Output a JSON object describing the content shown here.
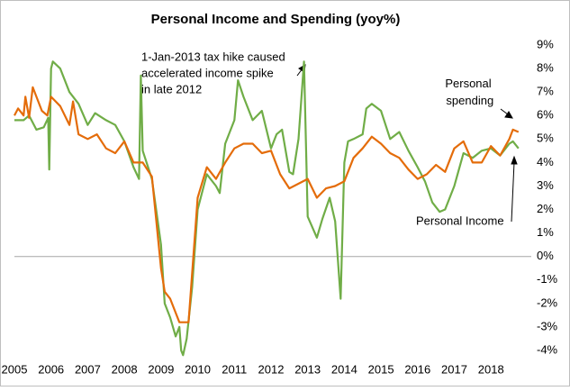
{
  "chart_data": {
    "type": "line",
    "title": "Personal Income and Spending (yoy%)",
    "annotation": [
      "1-Jan-2013 tax hike caused",
      "accelerated income spike",
      "in late 2012"
    ],
    "xlim": [
      2005,
      2019.1
    ],
    "xticks": [
      2005,
      2006,
      2007,
      2008,
      2009,
      2010,
      2011,
      2012,
      2013,
      2014,
      2015,
      2016,
      2017,
      2018
    ],
    "ylim": [
      -4,
      9
    ],
    "yticks": [
      {
        "value": -4,
        "label": "-4%"
      },
      {
        "value": -3,
        "label": "-3%"
      },
      {
        "value": -2,
        "label": "-2%"
      },
      {
        "value": -1,
        "label": "-1%"
      },
      {
        "value": 0,
        "label": "0%"
      },
      {
        "value": 1,
        "label": "1%"
      },
      {
        "value": 2,
        "label": "2%"
      },
      {
        "value": 3,
        "label": "3%"
      },
      {
        "value": 4,
        "label": "4%"
      },
      {
        "value": 5,
        "label": "5%"
      },
      {
        "value": 6,
        "label": "6%"
      },
      {
        "value": 7,
        "label": "7%"
      },
      {
        "value": 8,
        "label": "8%"
      },
      {
        "value": 9,
        "label": "9%"
      }
    ],
    "series": [
      {
        "name": "Personal Income",
        "color": "#70ad47",
        "x": [
          2005.0,
          2005.25,
          2005.4,
          2005.6,
          2005.8,
          2005.92,
          2005.95,
          2006.0,
          2006.05,
          2006.25,
          2006.5,
          2006.75,
          2007.0,
          2007.2,
          2007.5,
          2007.75,
          2008.0,
          2008.25,
          2008.4,
          2008.45,
          2008.5,
          2008.75,
          2009.0,
          2009.1,
          2009.25,
          2009.4,
          2009.5,
          2009.55,
          2009.6,
          2009.7,
          2009.85,
          2010.0,
          2010.25,
          2010.5,
          2010.6,
          2010.75,
          2011.0,
          2011.1,
          2011.25,
          2011.5,
          2011.75,
          2012.0,
          2012.15,
          2012.3,
          2012.5,
          2012.6,
          2012.75,
          2012.9,
          2013.0,
          2013.25,
          2013.4,
          2013.6,
          2013.75,
          2013.9,
          2014.0,
          2014.1,
          2014.25,
          2014.5,
          2014.6,
          2014.75,
          2015.0,
          2015.25,
          2015.5,
          2015.75,
          2016.0,
          2016.2,
          2016.4,
          2016.6,
          2016.75,
          2017.0,
          2017.25,
          2017.5,
          2017.75,
          2018.0,
          2018.25,
          2018.5,
          2018.6,
          2018.75
        ],
        "values": [
          5.8,
          5.8,
          6.0,
          5.4,
          5.5,
          5.9,
          3.7,
          8.0,
          8.3,
          8.0,
          7.0,
          6.5,
          5.6,
          6.1,
          5.8,
          5.6,
          4.9,
          3.8,
          3.3,
          7.7,
          4.5,
          3.3,
          0.5,
          -2.0,
          -2.6,
          -3.4,
          -3.0,
          -4.0,
          -4.2,
          -3.5,
          -1.3,
          2.0,
          3.5,
          3.0,
          2.7,
          4.8,
          5.8,
          7.5,
          6.8,
          5.8,
          6.2,
          4.6,
          5.2,
          5.4,
          3.6,
          3.5,
          5.0,
          8.3,
          1.7,
          0.8,
          1.6,
          2.5,
          1.5,
          -1.8,
          4.0,
          4.9,
          5.0,
          5.2,
          6.3,
          6.5,
          6.2,
          5.0,
          5.3,
          4.5,
          3.8,
          3.2,
          2.3,
          1.9,
          2.0,
          3.0,
          4.4,
          4.2,
          4.5,
          4.6,
          4.3,
          4.8,
          4.9,
          4.6
        ]
      },
      {
        "name": "Personal spending",
        "color": "#e46c0a",
        "x": [
          2005.0,
          2005.1,
          2005.25,
          2005.3,
          2005.4,
          2005.5,
          2005.75,
          2005.9,
          2006.0,
          2006.25,
          2006.5,
          2006.6,
          2006.75,
          2007.0,
          2007.25,
          2007.5,
          2007.75,
          2008.0,
          2008.25,
          2008.5,
          2008.75,
          2009.0,
          2009.1,
          2009.25,
          2009.5,
          2009.75,
          2010.0,
          2010.25,
          2010.5,
          2010.75,
          2011.0,
          2011.25,
          2011.5,
          2011.75,
          2012.0,
          2012.25,
          2012.5,
          2012.75,
          2013.0,
          2013.25,
          2013.5,
          2013.75,
          2014.0,
          2014.25,
          2014.5,
          2014.75,
          2015.0,
          2015.25,
          2015.5,
          2015.75,
          2016.0,
          2016.25,
          2016.5,
          2016.75,
          2017.0,
          2017.25,
          2017.5,
          2017.75,
          2018.0,
          2018.25,
          2018.5,
          2018.6,
          2018.75
        ],
        "values": [
          6.0,
          6.3,
          6.0,
          6.8,
          5.9,
          7.2,
          6.2,
          6.0,
          6.8,
          6.4,
          5.6,
          6.6,
          5.2,
          5.0,
          5.2,
          4.6,
          4.4,
          4.9,
          4.0,
          4.0,
          3.4,
          -0.5,
          -1.5,
          -1.8,
          -2.8,
          -2.8,
          2.5,
          3.8,
          3.3,
          4.0,
          4.6,
          4.8,
          4.8,
          4.4,
          4.5,
          3.5,
          2.9,
          3.1,
          3.3,
          2.5,
          2.9,
          3.0,
          3.2,
          4.2,
          4.6,
          5.1,
          4.8,
          4.4,
          4.2,
          3.7,
          3.3,
          3.5,
          3.9,
          3.6,
          4.6,
          4.9,
          4.0,
          4.0,
          4.7,
          4.3,
          5.0,
          5.4,
          5.3
        ]
      }
    ]
  }
}
